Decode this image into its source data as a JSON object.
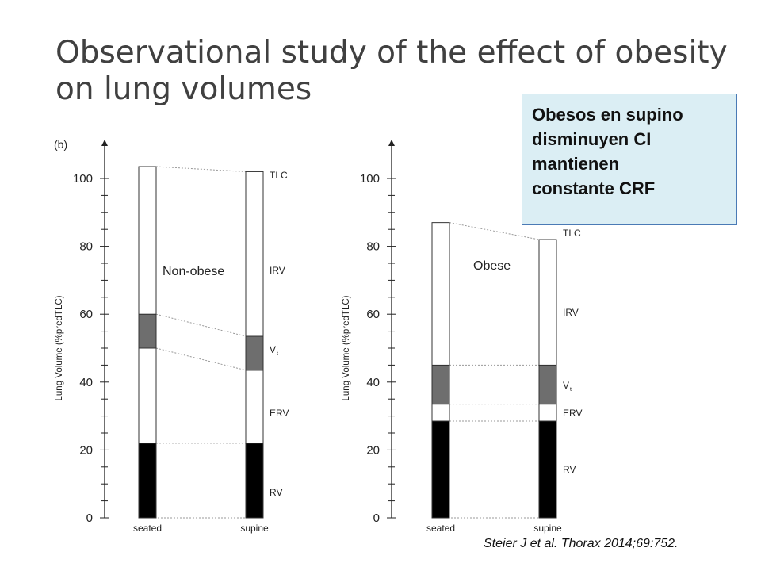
{
  "slide": {
    "title_lines": [
      "Observational study of the effect of obesity",
      "on lung volumes"
    ],
    "callout_lines": [
      "Obesos en supino",
      "disminuyen CI",
      "mantienen",
      "constante CRF"
    ],
    "citation": "Steier J et al. Thorax 2014;69:752."
  },
  "colors": {
    "rv_fill": "#000000",
    "vt_fill": "#6e6e6e",
    "callout_bg": "#dbeef4",
    "callout_border": "#4a7ab5"
  },
  "chart_data": [
    {
      "type": "bar",
      "panel_label": "(b)",
      "group_label": "Non-obese",
      "categories": [
        "seated",
        "supine"
      ],
      "ylabel": "Lung Volume (%predTLC)",
      "ylim": [
        0,
        105
      ],
      "yticks": [
        0,
        20,
        40,
        60,
        80,
        100
      ],
      "segments": {
        "RV": [
          [
            0,
            22
          ],
          [
            0,
            22
          ]
        ],
        "ERV": [
          [
            22,
            50
          ],
          [
            22,
            43.5
          ]
        ],
        "VT": [
          [
            50,
            60
          ],
          [
            43.5,
            53.5
          ]
        ],
        "IRV": [
          [
            60,
            103.5
          ],
          [
            53.5,
            102
          ]
        ]
      },
      "segment_labels": [
        "TLC",
        "IRV",
        "V",
        "t",
        "ERV",
        "RV"
      ]
    },
    {
      "type": "bar",
      "group_label": "Obese",
      "categories": [
        "seated",
        "supine"
      ],
      "ylabel": "Lung Volume (%predTLC)",
      "ylim": [
        0,
        105
      ],
      "yticks": [
        0,
        20,
        40,
        60,
        80,
        100
      ],
      "segments": {
        "RV": [
          [
            0,
            28.5
          ],
          [
            0,
            28.5
          ]
        ],
        "ERV": [
          [
            28.5,
            33.5
          ],
          [
            28.5,
            33.5
          ]
        ],
        "VT": [
          [
            33.5,
            45
          ],
          [
            33.5,
            45
          ]
        ],
        "IRV": [
          [
            45,
            87
          ],
          [
            45,
            82
          ]
        ]
      },
      "segment_labels": [
        "TLC",
        "IRV",
        "V",
        "t",
        "ERV",
        "RV"
      ]
    }
  ]
}
